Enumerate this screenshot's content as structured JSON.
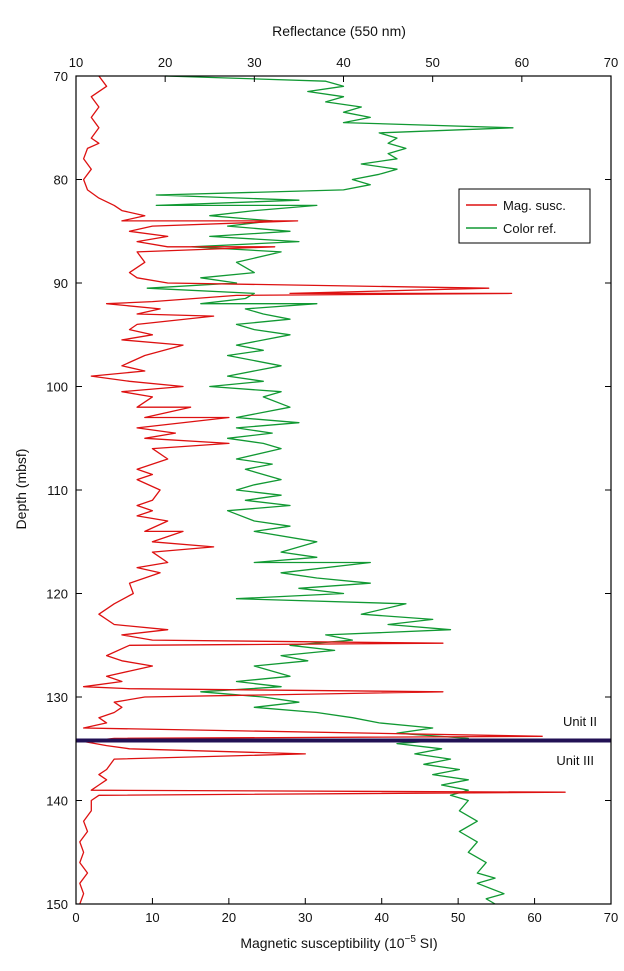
{
  "chart_data": {
    "type": "line",
    "orientation": "depth-profile",
    "title": "",
    "ylabel": "Depth (mbsf)",
    "xlabel_bottom": "Magnetic susceptibility (10",
    "xlabel_bottom_sup": "−5",
    "xlabel_bottom_tail": " SI)",
    "xlabel_top": "Reflectance (550 nm)",
    "ylim": [
      70,
      150
    ],
    "y_inverted": true,
    "xlim_bottom": [
      0,
      70
    ],
    "xlim_top": [
      10,
      70
    ],
    "yticks": [
      70,
      80,
      90,
      100,
      110,
      120,
      130,
      140,
      150
    ],
    "xticks_bottom": [
      0,
      10,
      20,
      30,
      40,
      50,
      60,
      70
    ],
    "xticks_top": [
      10,
      20,
      30,
      40,
      50,
      60,
      70
    ],
    "grid": false,
    "legend_position": "upper-right",
    "series": [
      {
        "name": "Mag. susc.",
        "axis": "bottom",
        "color": "#dd1111",
        "points": [
          [
            3,
            70
          ],
          [
            4,
            71
          ],
          [
            2,
            72
          ],
          [
            3,
            73
          ],
          [
            2,
            74
          ],
          [
            3,
            75
          ],
          [
            2,
            76
          ],
          [
            3,
            76.5
          ],
          [
            1.5,
            77
          ],
          [
            1,
            78
          ],
          [
            2,
            79
          ],
          [
            1,
            80
          ],
          [
            1.5,
            81
          ],
          [
            3,
            81.8
          ],
          [
            5,
            82.5
          ],
          [
            6,
            83
          ],
          [
            9,
            83.5
          ],
          [
            6,
            84
          ],
          [
            12,
            84
          ],
          [
            29,
            84
          ],
          [
            10,
            84.5
          ],
          [
            7,
            85
          ],
          [
            12,
            85.5
          ],
          [
            8,
            86
          ],
          [
            12,
            86.5
          ],
          [
            26,
            86.5
          ],
          [
            8,
            87
          ],
          [
            9,
            88
          ],
          [
            7,
            89
          ],
          [
            8,
            89.5
          ],
          [
            12,
            90
          ],
          [
            54,
            90.5
          ],
          [
            28,
            91
          ],
          [
            57,
            91
          ],
          [
            21,
            91.2
          ],
          [
            10,
            91.8
          ],
          [
            4,
            92
          ],
          [
            11,
            92.5
          ],
          [
            8,
            93
          ],
          [
            18,
            93.2
          ],
          [
            8,
            94
          ],
          [
            7,
            94.5
          ],
          [
            10,
            95
          ],
          [
            6,
            95.5
          ],
          [
            14,
            96
          ],
          [
            9,
            97
          ],
          [
            6,
            98
          ],
          [
            9,
            98.5
          ],
          [
            2,
            99
          ],
          [
            7,
            99.5
          ],
          [
            14,
            100
          ],
          [
            6,
            100.5
          ],
          [
            10,
            101
          ],
          [
            8,
            102
          ],
          [
            15,
            102
          ],
          [
            9,
            103
          ],
          [
            20,
            103
          ],
          [
            8,
            104
          ],
          [
            13,
            104.5
          ],
          [
            9,
            105
          ],
          [
            20,
            105.5
          ],
          [
            10,
            106
          ],
          [
            12,
            107
          ],
          [
            10,
            107.5
          ],
          [
            8,
            108
          ],
          [
            10,
            108.5
          ],
          [
            8,
            109
          ],
          [
            11,
            110
          ],
          [
            10,
            111
          ],
          [
            8,
            111.5
          ],
          [
            10,
            112
          ],
          [
            8,
            112.5
          ],
          [
            12,
            113
          ],
          [
            9,
            114
          ],
          [
            14,
            114
          ],
          [
            10,
            115
          ],
          [
            18,
            115.5
          ],
          [
            10,
            116
          ],
          [
            12,
            117
          ],
          [
            8,
            117.5
          ],
          [
            11,
            118
          ],
          [
            7,
            119
          ],
          [
            7.5,
            120
          ],
          [
            5,
            121
          ],
          [
            3,
            122
          ],
          [
            5,
            123
          ],
          [
            12,
            123.5
          ],
          [
            6,
            124
          ],
          [
            10,
            124.5
          ],
          [
            48,
            124.8
          ],
          [
            7,
            125
          ],
          [
            4,
            126
          ],
          [
            6,
            126.5
          ],
          [
            10,
            127
          ],
          [
            7,
            127.5
          ],
          [
            4,
            128
          ],
          [
            6,
            128.5
          ],
          [
            1,
            129
          ],
          [
            7,
            129.2
          ],
          [
            48,
            129.5
          ],
          [
            9,
            130
          ],
          [
            5,
            130.5
          ],
          [
            6,
            131
          ],
          [
            5,
            131.5
          ],
          [
            3,
            132
          ],
          [
            4,
            132.5
          ],
          [
            1,
            133
          ],
          [
            61,
            133.8
          ],
          [
            5,
            134
          ],
          [
            1,
            134.3
          ],
          [
            4,
            134.7
          ],
          [
            7,
            135
          ],
          [
            30,
            135.5
          ],
          [
            5,
            136
          ],
          [
            4,
            137
          ],
          [
            3,
            137.5
          ],
          [
            4,
            138
          ],
          [
            3,
            138.5
          ],
          [
            2,
            139
          ],
          [
            64,
            139.2
          ],
          [
            3,
            139.5
          ],
          [
            2,
            140
          ],
          [
            2,
            141
          ],
          [
            1,
            142
          ],
          [
            1.5,
            143
          ],
          [
            0.5,
            144
          ],
          [
            1,
            145
          ],
          [
            0.5,
            146
          ],
          [
            1.5,
            147
          ],
          [
            0.5,
            148
          ],
          [
            1,
            149
          ],
          [
            0.5,
            150
          ]
        ]
      },
      {
        "name": "Color ref.",
        "axis": "top",
        "color": "#119933",
        "points": [
          [
            20,
            70
          ],
          [
            38,
            70.5
          ],
          [
            40,
            71
          ],
          [
            36,
            71.5
          ],
          [
            40,
            72
          ],
          [
            38,
            72.5
          ],
          [
            42,
            73
          ],
          [
            40,
            73.5
          ],
          [
            43,
            74
          ],
          [
            40,
            74.5
          ],
          [
            59,
            75
          ],
          [
            44,
            75.5
          ],
          [
            46,
            76
          ],
          [
            45,
            76.5
          ],
          [
            47,
            77
          ],
          [
            45,
            77.5
          ],
          [
            46,
            78
          ],
          [
            42,
            78.5
          ],
          [
            46,
            79
          ],
          [
            44,
            79.5
          ],
          [
            41,
            80
          ],
          [
            43,
            80.5
          ],
          [
            40,
            81
          ],
          [
            19,
            81.5
          ],
          [
            35,
            82
          ],
          [
            19,
            82.5
          ],
          [
            37,
            82.5
          ],
          [
            30,
            83
          ],
          [
            25,
            83.5
          ],
          [
            32,
            84
          ],
          [
            27,
            84.5
          ],
          [
            34,
            85
          ],
          [
            25,
            85.5
          ],
          [
            35,
            86
          ],
          [
            23,
            86.5
          ],
          [
            33,
            87
          ],
          [
            28,
            88
          ],
          [
            30,
            89
          ],
          [
            24,
            89.5
          ],
          [
            28,
            90
          ],
          [
            18,
            90.5
          ],
          [
            30,
            91
          ],
          [
            29,
            91.5
          ],
          [
            24,
            92
          ],
          [
            37,
            92
          ],
          [
            29,
            92.5
          ],
          [
            31,
            93
          ],
          [
            34,
            93.5
          ],
          [
            28,
            94
          ],
          [
            30,
            94.5
          ],
          [
            34,
            95
          ],
          [
            28,
            96
          ],
          [
            31,
            96.5
          ],
          [
            27,
            97
          ],
          [
            33,
            98
          ],
          [
            27,
            99
          ],
          [
            31,
            99.5
          ],
          [
            25,
            100
          ],
          [
            33,
            100.5
          ],
          [
            31,
            101
          ],
          [
            34,
            102
          ],
          [
            28,
            103
          ],
          [
            35,
            103.5
          ],
          [
            28,
            104
          ],
          [
            32,
            104.5
          ],
          [
            27,
            105
          ],
          [
            31,
            105.5
          ],
          [
            33,
            106
          ],
          [
            28,
            107
          ],
          [
            32,
            107.5
          ],
          [
            29,
            108
          ],
          [
            33,
            109
          ],
          [
            30,
            109.5
          ],
          [
            28,
            110
          ],
          [
            33,
            110.5
          ],
          [
            29,
            111
          ],
          [
            34,
            111.5
          ],
          [
            27,
            112
          ],
          [
            30,
            113
          ],
          [
            34,
            113.5
          ],
          [
            30,
            114
          ],
          [
            37,
            115
          ],
          [
            33,
            116
          ],
          [
            37,
            116.5
          ],
          [
            30,
            117
          ],
          [
            43,
            117
          ],
          [
            33,
            118
          ],
          [
            37,
            118.5
          ],
          [
            43,
            119
          ],
          [
            35,
            119.5
          ],
          [
            40,
            120
          ],
          [
            28,
            120.5
          ],
          [
            47,
            121
          ],
          [
            42,
            122
          ],
          [
            50,
            122.5
          ],
          [
            45,
            123
          ],
          [
            52,
            123.5
          ],
          [
            38,
            124
          ],
          [
            41,
            124.5
          ],
          [
            34,
            125
          ],
          [
            39,
            125.5
          ],
          [
            33,
            126
          ],
          [
            36,
            126.5
          ],
          [
            30,
            127
          ],
          [
            34,
            128
          ],
          [
            28,
            128.5
          ],
          [
            33,
            129
          ],
          [
            24,
            129.5
          ],
          [
            31,
            130
          ],
          [
            35,
            130.5
          ],
          [
            30,
            131
          ],
          [
            37,
            131.5
          ],
          [
            41,
            132
          ],
          [
            44,
            132.5
          ],
          [
            50,
            133
          ],
          [
            46,
            133.5
          ],
          [
            54,
            134
          ],
          [
            46,
            134.5
          ],
          [
            51,
            135
          ],
          [
            48,
            135.5
          ],
          [
            52,
            136
          ],
          [
            49,
            136.5
          ],
          [
            53,
            137
          ],
          [
            50,
            137.5
          ],
          [
            54,
            138
          ],
          [
            51,
            138.5
          ],
          [
            54,
            139
          ],
          [
            52,
            139.5
          ],
          [
            54,
            140
          ],
          [
            53,
            141
          ],
          [
            55,
            142
          ],
          [
            53,
            143
          ],
          [
            55,
            144
          ],
          [
            54,
            145
          ],
          [
            56,
            146
          ],
          [
            55,
            147
          ],
          [
            57,
            147.5
          ],
          [
            55,
            148
          ],
          [
            58,
            149
          ],
          [
            56,
            149.5
          ],
          [
            57,
            150
          ]
        ]
      }
    ],
    "legend": [
      {
        "label": "Mag. susc.",
        "color": "#dd1111"
      },
      {
        "label": "Color ref.",
        "color": "#119933"
      }
    ],
    "annotations": [
      {
        "label": "Unit II",
        "depth": 133.3
      },
      {
        "label": "Unit III",
        "depth": 137.2
      }
    ],
    "boundary": {
      "depth": 134.2,
      "color": "#221155"
    }
  }
}
